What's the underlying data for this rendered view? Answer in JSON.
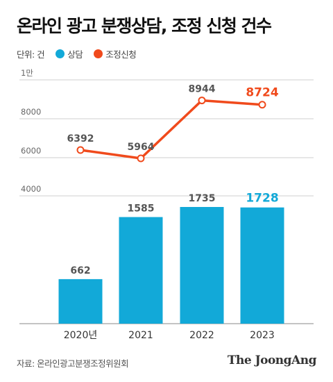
{
  "header": {
    "title": "온라인 광고 분쟁상담, 조정 신청 건수"
  },
  "legend": {
    "unit": "단위: 건",
    "items": [
      {
        "label": "상담",
        "color": "#12a9d8"
      },
      {
        "label": "조정신청",
        "color": "#f04a1c"
      }
    ]
  },
  "footer": {
    "source": "자료: 온라인광고분쟁조정위원회",
    "brand": "The JoongAng"
  },
  "chart_data": {
    "type": "bar",
    "categories": [
      "2020년",
      "2021",
      "2022",
      "2023"
    ],
    "series": [
      {
        "name": "상담",
        "type": "bar",
        "values": [
          662,
          1585,
          1735,
          1728
        ],
        "labels": [
          "662",
          "1585",
          "1735",
          "1728"
        ],
        "color": "#12a9d8",
        "highlight_label_color": "#12a9d8"
      },
      {
        "name": "조정신청",
        "type": "line",
        "values": [
          6392,
          5964,
          8944,
          8724
        ],
        "labels": [
          "6392",
          "5964",
          "8944",
          "8724"
        ],
        "color": "#f04a1c",
        "highlight_label_color": "#f04a1c"
      }
    ],
    "yticks": [
      "4000",
      "6000",
      "8000",
      "1만"
    ],
    "grid": true
  }
}
